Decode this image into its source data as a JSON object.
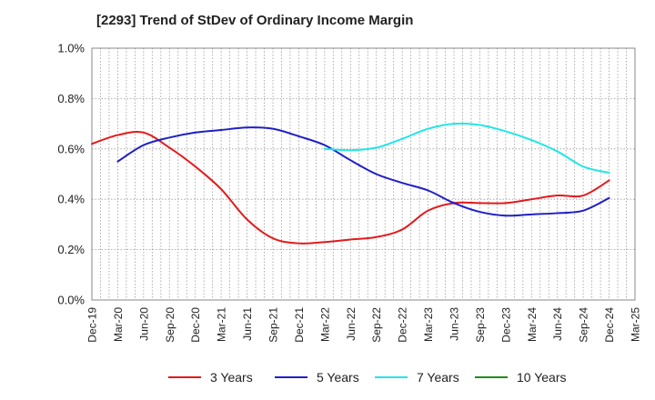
{
  "title": "[2293]  Trend of StDev of Ordinary Income Margin",
  "colors": {
    "3 Years": "#e31a1c",
    "5 Years": "#1f1fc8",
    "7 Years": "#22e6e6",
    "10 Years": "#1e8c1e"
  },
  "chart_data": {
    "type": "line",
    "title": "[2293]  Trend of StDev of Ordinary Income Margin",
    "xlabel": "",
    "ylabel": "",
    "ylim": [
      0,
      1.0
    ],
    "y_unit": "%",
    "y_ticks": [
      "0.0%",
      "0.2%",
      "0.4%",
      "0.6%",
      "0.8%",
      "1.0%"
    ],
    "x_ticks": [
      "Dec-19",
      "Mar-20",
      "Jun-20",
      "Sep-20",
      "Dec-20",
      "Mar-21",
      "Jun-21",
      "Sep-21",
      "Dec-21",
      "Mar-22",
      "Jun-22",
      "Sep-22",
      "Dec-22",
      "Mar-23",
      "Jun-23",
      "Sep-23",
      "Dec-23",
      "Mar-24",
      "Jun-24",
      "Sep-24",
      "Dec-24",
      "Mar-25"
    ],
    "grid": true,
    "legend_position": "bottom",
    "series": [
      {
        "name": "3 Years",
        "x": [
          "Dec-19",
          "Mar-20",
          "Jun-20",
          "Sep-20",
          "Dec-20",
          "Mar-21",
          "Jun-21",
          "Sep-21",
          "Dec-21",
          "Mar-22",
          "Jun-22",
          "Sep-22",
          "Dec-22",
          "Mar-23",
          "Jun-23",
          "Sep-23",
          "Dec-23",
          "Mar-24",
          "Jun-24",
          "Sep-24",
          "Dec-24"
        ],
        "values": [
          0.62,
          0.655,
          0.665,
          0.605,
          0.53,
          0.44,
          0.32,
          0.245,
          0.225,
          0.23,
          0.24,
          0.25,
          0.28,
          0.355,
          0.385,
          0.385,
          0.385,
          0.4,
          0.415,
          0.415,
          0.475
        ]
      },
      {
        "name": "5 Years",
        "x": [
          "Mar-20",
          "Jun-20",
          "Sep-20",
          "Dec-20",
          "Mar-21",
          "Jun-21",
          "Sep-21",
          "Dec-21",
          "Mar-22",
          "Jun-22",
          "Sep-22",
          "Dec-22",
          "Mar-23",
          "Jun-23",
          "Sep-23",
          "Dec-23",
          "Mar-24",
          "Jun-24",
          "Sep-24",
          "Dec-24"
        ],
        "values": [
          0.55,
          0.615,
          0.645,
          0.665,
          0.675,
          0.685,
          0.68,
          0.65,
          0.615,
          0.555,
          0.5,
          0.465,
          0.435,
          0.385,
          0.35,
          0.335,
          0.34,
          0.345,
          0.355,
          0.405
        ]
      },
      {
        "name": "7 Years",
        "x": [
          "Mar-22",
          "Jun-22",
          "Sep-22",
          "Dec-22",
          "Mar-23",
          "Jun-23",
          "Sep-23",
          "Dec-23",
          "Mar-24",
          "Jun-24",
          "Sep-24",
          "Dec-24"
        ],
        "values": [
          0.6,
          0.595,
          0.605,
          0.64,
          0.68,
          0.7,
          0.695,
          0.67,
          0.635,
          0.59,
          0.53,
          0.505
        ]
      },
      {
        "name": "10 Years",
        "x": [],
        "values": []
      }
    ]
  }
}
